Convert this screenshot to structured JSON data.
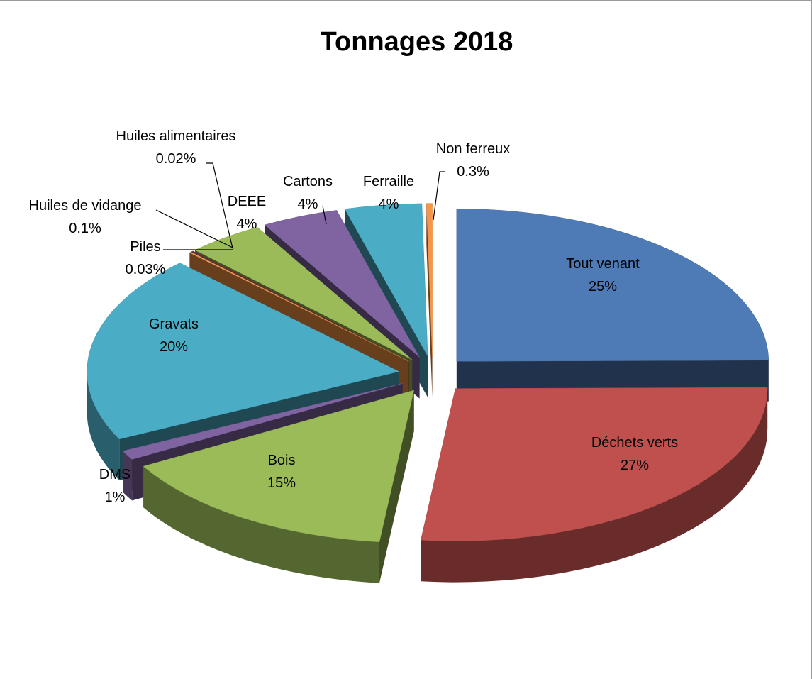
{
  "chart_data": {
    "type": "pie",
    "title": "Tonnages 2018",
    "slices": [
      {
        "name": "Tout venant",
        "value_label": "25%",
        "value": 25,
        "color": "#4e7ab5",
        "label_inside": true
      },
      {
        "name": "Déchets verts",
        "value_label": "27%",
        "value": 27,
        "color": "#c0504d",
        "label_inside": true
      },
      {
        "name": "Bois",
        "value_label": "15%",
        "value": 15,
        "color": "#9bbb59",
        "label_inside": true
      },
      {
        "name": "DMS",
        "value_label": "1%",
        "value": 1,
        "color": "#8064a2",
        "label_inside": false
      },
      {
        "name": "Gravats",
        "value_label": "20%",
        "value": 20,
        "color": "#4bacc6",
        "label_inside": true
      },
      {
        "name": "Piles",
        "value_label": "0.03%",
        "value": 0.03,
        "color": "#f79646",
        "label_inside": false
      },
      {
        "name": "Huiles de vidange",
        "value_label": "0.1%",
        "value": 0.1,
        "color": "#2c4d75",
        "label_inside": false
      },
      {
        "name": "Huiles alimentaires",
        "value_label": "0.02%",
        "value": 0.02,
        "color": "#772c2a",
        "label_inside": false
      },
      {
        "name": "DEEE",
        "value_label": "4%",
        "value": 4,
        "color": "#9bbb59",
        "label_inside": false
      },
      {
        "name": "Cartons",
        "value_label": "4%",
        "value": 4,
        "color": "#8064a2",
        "label_inside": false
      },
      {
        "name": "Ferraille",
        "value_label": "4%",
        "value": 4,
        "color": "#4bacc6",
        "label_inside": false
      },
      {
        "name": "Non ferreux",
        "value_label": "0.3%",
        "value": 0.3,
        "color": "#f79646",
        "label_inside": false
      }
    ],
    "legend": "none",
    "style": "3d-exploded"
  }
}
